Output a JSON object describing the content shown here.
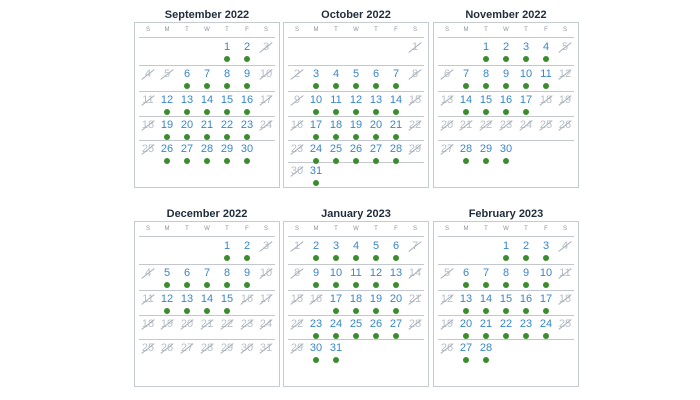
{
  "weekday_headers": [
    "S",
    "M",
    "T",
    "W",
    "T",
    "F",
    "S"
  ],
  "colors": {
    "available_dot": "#3b8c2e",
    "date_text": "#3a86c8",
    "unavailable_text": "#b9c0c9"
  },
  "months": [
    {
      "title": "September 2022",
      "first_weekday": 4,
      "days": 30,
      "available": [
        1,
        2,
        6,
        7,
        8,
        9,
        12,
        13,
        14,
        15,
        16,
        19,
        20,
        21,
        22,
        23,
        26,
        27,
        28,
        29,
        30
      ]
    },
    {
      "title": "October 2022",
      "first_weekday": 6,
      "days": 31,
      "available": [
        3,
        4,
        5,
        6,
        7,
        10,
        11,
        12,
        13,
        14,
        17,
        18,
        19,
        20,
        21,
        24,
        25,
        26,
        27,
        28,
        31
      ]
    },
    {
      "title": "November 2022",
      "first_weekday": 2,
      "days": 30,
      "available": [
        1,
        2,
        3,
        4,
        7,
        8,
        9,
        10,
        11,
        14,
        15,
        16,
        17,
        28,
        29,
        30
      ]
    },
    {
      "title": "December 2022",
      "first_weekday": 4,
      "days": 31,
      "available": [
        1,
        2,
        5,
        6,
        7,
        8,
        9,
        12,
        13,
        14,
        15
      ]
    },
    {
      "title": "January 2023",
      "first_weekday": 0,
      "days": 31,
      "available": [
        2,
        3,
        4,
        5,
        6,
        9,
        10,
        11,
        12,
        13,
        17,
        18,
        19,
        20,
        23,
        24,
        25,
        26,
        27,
        30,
        31
      ]
    },
    {
      "title": "February 2023",
      "first_weekday": 3,
      "days": 28,
      "available": [
        1,
        2,
        3,
        6,
        7,
        8,
        9,
        10,
        13,
        14,
        15,
        16,
        17,
        20,
        21,
        22,
        23,
        24,
        27,
        28
      ]
    }
  ]
}
